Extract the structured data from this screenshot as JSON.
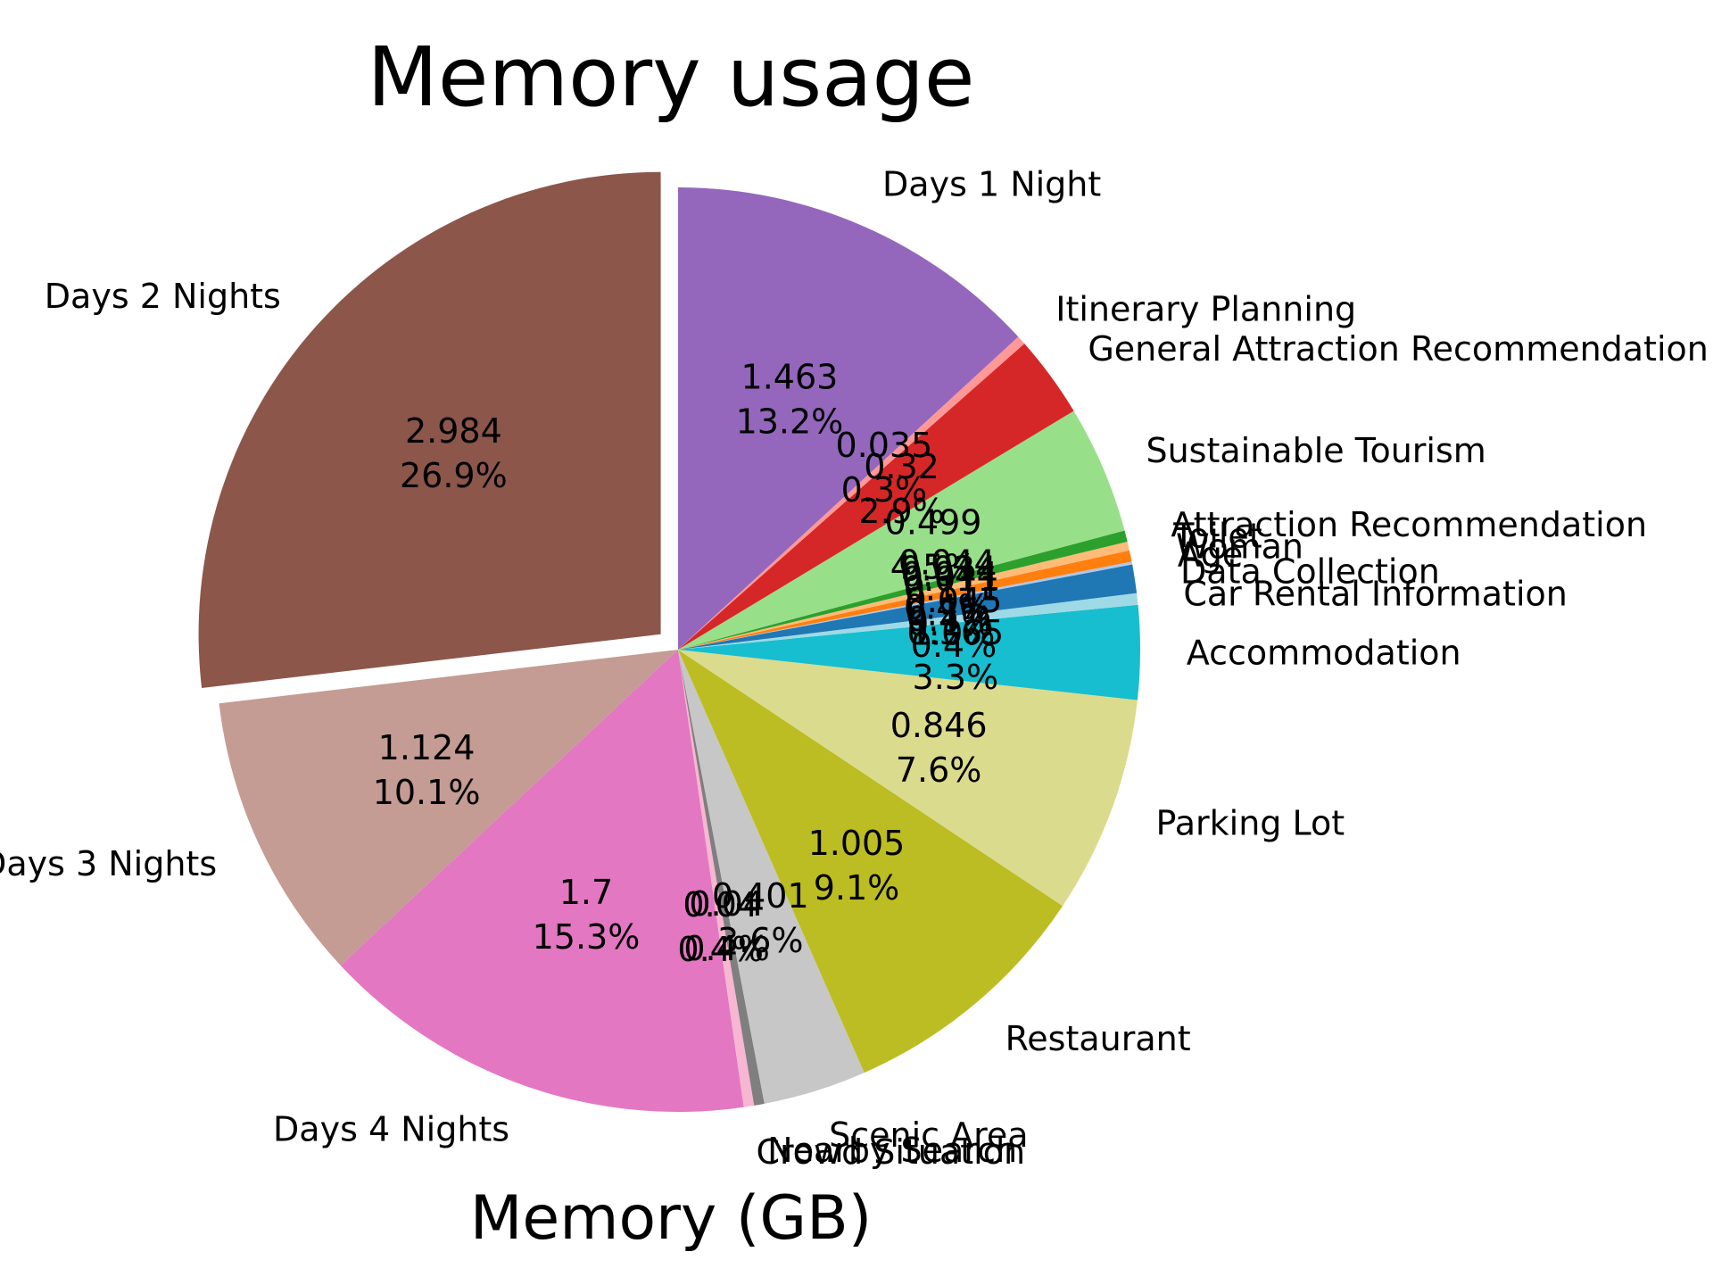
{
  "chart_data": {
    "type": "pie",
    "title": "Memory usage",
    "xlabel": "Memory (GB)",
    "ylabel": "",
    "start_angle_deg": 90,
    "direction": "counterclockwise",
    "slices": [
      {
        "label": "Days 2 Nights",
        "value": 2.984,
        "pct": "26.9%",
        "color": "#8c564b",
        "explode": true
      },
      {
        "label": "Days 3 Nights",
        "value": 1.124,
        "pct": "10.1%",
        "color": "#c49c94"
      },
      {
        "label": "Days 4 Nights",
        "value": 1.7,
        "pct": "15.3%",
        "color": "#e377c2"
      },
      {
        "label": "Crowd Situation",
        "value": 0.04,
        "pct": "0.4%",
        "color": "#f7b6d2"
      },
      {
        "label": "Nearby Search",
        "value": 0.04,
        "pct": "0.4%",
        "color": "#7f7f7f"
      },
      {
        "label": "Scenic Area",
        "value": 0.401,
        "pct": "3.6%",
        "color": "#c7c7c7"
      },
      {
        "label": "Restaurant",
        "value": 1.005,
        "pct": "9.1%",
        "color": "#bcbd22"
      },
      {
        "label": "Parking Lot",
        "value": 0.846,
        "pct": "7.6%",
        "color": "#dbdb8d"
      },
      {
        "label": "Accommodation",
        "value": 0.365,
        "pct": "3.3%",
        "color": "#17becf"
      },
      {
        "label": "Car Rental Information",
        "value": 0.045,
        "pct": "0.4%",
        "color": "#9edae5"
      },
      {
        "label": "Data Collection",
        "value": 0.111,
        "pct": "1.0%",
        "color": "#1f77b4"
      },
      {
        "label": "Age",
        "value": 0.011,
        "pct": "0.1%",
        "color": "#aec7e8"
      },
      {
        "label": "Woman",
        "value": 0.044,
        "pct": "0.4%",
        "color": "#ff7f0e"
      },
      {
        "label": "Toilet",
        "value": 0.034,
        "pct": "0.3%",
        "color": "#ffbb78"
      },
      {
        "label": "Attraction Recommendation",
        "value": 0.044,
        "pct": "0.4%",
        "color": "#2ca02c"
      },
      {
        "label": "Sustainable Tourism",
        "value": 0.499,
        "pct": "4.5%",
        "color": "#98df8a"
      },
      {
        "label": "General Attraction Recommendation",
        "value": 0.32,
        "pct": "2.9%",
        "color": "#d62728"
      },
      {
        "label": "Itinerary Planning",
        "value": 0.035,
        "pct": "0.3%",
        "color": "#ff9896"
      },
      {
        "label": "Days 1 Night",
        "value": 1.463,
        "pct": "13.2%",
        "color": "#9467bd"
      }
    ]
  }
}
